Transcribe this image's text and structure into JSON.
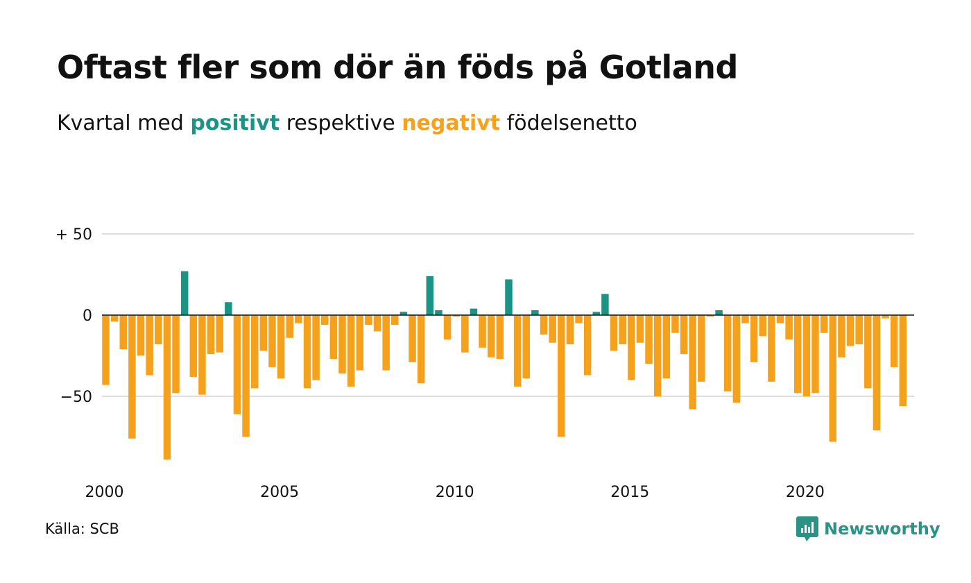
{
  "title": "Oftast fler som dör än föds på Gotland",
  "subtitle": {
    "before": "Kvartal med ",
    "positive_word": "positivt",
    "middle": " respektive ",
    "negative_word": "negativt",
    "after": " födelsenetto"
  },
  "source": "Källa: SCB",
  "brand": "Newsworthy",
  "colors": {
    "positive": "#1a9485",
    "negative": "#f5a11c",
    "brand": "#2a9385",
    "grid": "#dddddd",
    "baseline": "#111111"
  },
  "chart_data": {
    "type": "bar",
    "ylim": [
      -92,
      50
    ],
    "y_ticks": [
      {
        "value": 50,
        "label": "+ 50"
      },
      {
        "value": 0,
        "label": "0"
      },
      {
        "value": -50,
        "label": "−50"
      }
    ],
    "x_ticks": [
      {
        "year": 2000,
        "label": "2000"
      },
      {
        "year": 2005,
        "label": "2005"
      },
      {
        "year": 2010,
        "label": "2010"
      },
      {
        "year": 2015,
        "label": "2015"
      },
      {
        "year": 2020,
        "label": "2020"
      }
    ],
    "grid": true,
    "start": "2000 Q1",
    "values": [
      -43,
      -4,
      -21,
      -76,
      -25,
      -37,
      -18,
      -89,
      -48,
      27,
      -38,
      -49,
      -24,
      -23,
      8,
      -61,
      -75,
      -45,
      -22,
      -32,
      -39,
      -14,
      -5,
      -45,
      -40,
      -6,
      -27,
      -36,
      -44,
      -34,
      -6,
      -10,
      -34,
      -6,
      2,
      -29,
      -42,
      24,
      3,
      -15,
      -1,
      -23,
      4,
      -20,
      -26,
      -27,
      22,
      -44,
      -39,
      3,
      -12,
      -17,
      -75,
      -18,
      -5,
      -37,
      2,
      13,
      -22,
      -18,
      -40,
      -17,
      -30,
      -50,
      -39,
      -11,
      -24,
      -58,
      -41,
      -1,
      3,
      -47,
      -54,
      -5,
      -29,
      -13,
      -41,
      -5,
      -15,
      -48,
      -50,
      -48,
      -11,
      -78,
      -26,
      -19,
      -18,
      -45,
      -71,
      -2,
      -32,
      -56
    ]
  }
}
